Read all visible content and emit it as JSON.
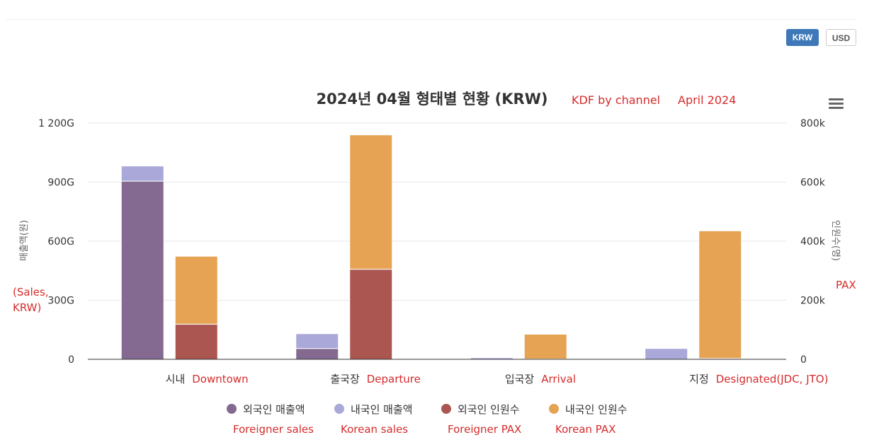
{
  "currency_toggle": {
    "krw_label": "KRW",
    "usd_label": "USD",
    "active": "KRW",
    "active_color": "#3f78b8"
  },
  "annotations": {
    "title_note_1": "KDF by channel",
    "title_note_2": "April 2024",
    "left_axis_note": [
      "(Sales,",
      "KRW)"
    ],
    "right_axis_note": "PAX",
    "category_notes": [
      "Downtown",
      "Departure",
      "Arrival",
      "Designated(JDC, JTO)"
    ],
    "legend_notes": [
      "Foreigner sales",
      "Korean sales",
      "Foreigner PAX",
      "Korean PAX"
    ],
    "color": "#d62b2b"
  },
  "menu_icon": "hamburger-menu-icon",
  "chart_data": {
    "type": "bar",
    "stacked": true,
    "title": "2024년 04월 형태별 현황 (KRW)",
    "categories": [
      "시내",
      "출국장",
      "입국장",
      "지정"
    ],
    "y_left": {
      "label": "매출액(원)",
      "ylim": [
        0,
        1200
      ],
      "ticks": [
        0,
        300,
        600,
        900,
        1200
      ],
      "tick_labels": [
        "0",
        "300G",
        "600G",
        "900G",
        "1 200G"
      ]
    },
    "y_right": {
      "label": "인원수(명)",
      "ylim": [
        0,
        800
      ],
      "ticks": [
        0,
        200,
        400,
        600,
        800
      ],
      "tick_labels": [
        "0",
        "200k",
        "400k",
        "600k",
        "800k"
      ]
    },
    "series": [
      {
        "name": "외국인 매출액",
        "axis": "left",
        "stack": "sales",
        "color": "#846a90",
        "values": [
          905,
          55,
          0,
          0
        ]
      },
      {
        "name": "내국인 매출액",
        "axis": "left",
        "stack": "sales",
        "color": "#a9a8d8",
        "values": [
          77,
          75,
          8,
          55
        ]
      },
      {
        "name": "외국인 인원수",
        "axis": "right",
        "stack": "pax",
        "color": "#ab5651",
        "values": [
          119,
          305,
          1,
          3
        ]
      },
      {
        "name": "내국인 인원수",
        "axis": "right",
        "stack": "pax",
        "color": "#e5a353",
        "values": [
          230,
          455,
          84,
          432
        ]
      }
    ],
    "grid": true,
    "legend_position": "bottom"
  }
}
